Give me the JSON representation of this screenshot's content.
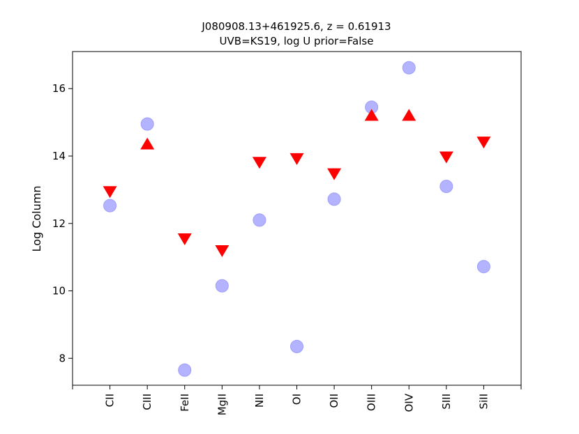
{
  "chart_data": {
    "type": "scatter",
    "title_line1": "J080908.13+461925.6, z = 0.61913",
    "title_line2": "UVB=KS19, log U prior=False",
    "xlabel": "",
    "ylabel": "Log Column",
    "categories": [
      "CII",
      "CIII",
      "FeII",
      "MgII",
      "NII",
      "OI",
      "OII",
      "OIII",
      "OIV",
      "SIII",
      "SiII"
    ],
    "ylim": [
      7.2,
      17.1
    ],
    "yticks": [
      8,
      10,
      12,
      14,
      16
    ],
    "grid": false,
    "series": [
      {
        "marker": "circle",
        "color": "#b3b3ff",
        "values": [
          12.53,
          14.95,
          7.65,
          10.15,
          12.1,
          8.35,
          12.72,
          15.45,
          16.62,
          13.1,
          10.72
        ]
      },
      {
        "marker": "triangle-down",
        "color": "#ff0000",
        "values": [
          12.95,
          null,
          11.55,
          11.2,
          13.82,
          13.93,
          13.48,
          null,
          null,
          13.98,
          14.42
        ]
      },
      {
        "marker": "triangle-up",
        "color": "#ff0000",
        "values": [
          null,
          14.35,
          null,
          null,
          null,
          null,
          null,
          15.2,
          15.2,
          null,
          null
        ]
      }
    ]
  }
}
